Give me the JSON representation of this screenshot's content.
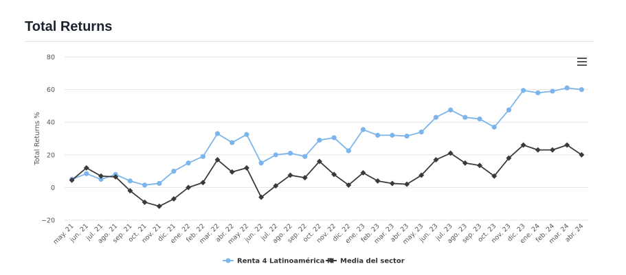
{
  "header": {
    "title": "Total Returns"
  },
  "colors": {
    "series1": "#7cb5ec",
    "series2": "#3a3a3a",
    "grid": "#e6e6e6"
  },
  "menu": {
    "icon": "hamburger-menu-icon"
  },
  "chart_data": {
    "type": "line",
    "title": "Total Returns",
    "ylabel": "Total Returns %",
    "xlabel": "",
    "ylim": [
      -20,
      80
    ],
    "yticks": [
      -20,
      0,
      20,
      40,
      60,
      80
    ],
    "grid": true,
    "legend": "bottom-center",
    "categories": [
      "may. 21",
      "jun. 21",
      "jul. 21",
      "ago. 21",
      "sep. 21",
      "oct. 21",
      "nov. 21",
      "dic. 21",
      "ene. 22",
      "feb. 22",
      "mar. 22",
      "abr. 22",
      "may. 22",
      "jun. 22",
      "jul. 22",
      "ago. 22",
      "sep. 22",
      "oct. 22",
      "nov. 22",
      "dic. 22",
      "ene. 23",
      "feb. 23",
      "mar. 23",
      "abr. 23",
      "may. 23",
      "jun. 23",
      "jul. 23",
      "ago. 23",
      "sep. 23",
      "oct. 23",
      "nov. 23",
      "dic. 23",
      "ene. 24",
      "feb. 24",
      "mar. 24",
      "abr. 24"
    ],
    "series": [
      {
        "name": "Renta 4 Latinoamérica FI",
        "values": [
          5,
          8.5,
          5,
          8,
          4,
          1.5,
          2.5,
          10,
          15,
          19,
          33,
          27.5,
          32.5,
          15,
          20,
          21,
          19,
          29,
          30.5,
          22.5,
          35.5,
          32,
          32,
          31.5,
          34,
          43,
          47.5,
          43,
          42,
          37,
          47.5,
          59.5,
          58,
          59,
          61,
          60
        ]
      },
      {
        "name": "Media del sector",
        "values": [
          4.5,
          12,
          7,
          6.5,
          -2,
          -9,
          -11.5,
          -7,
          0,
          3,
          17,
          9.5,
          12,
          -6,
          1,
          7.5,
          6,
          16,
          8,
          1.5,
          9,
          4,
          2.5,
          2,
          7.5,
          17,
          21,
          15,
          13.5,
          7,
          18,
          26,
          23,
          23,
          26,
          20
        ]
      }
    ]
  }
}
